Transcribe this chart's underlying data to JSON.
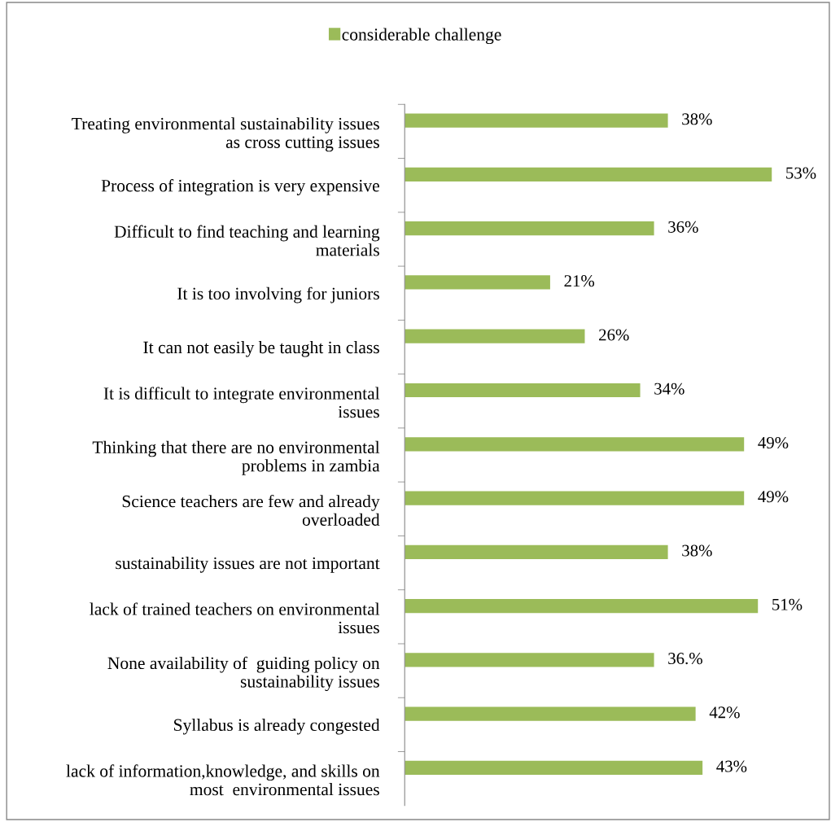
{
  "chart_data": {
    "type": "bar",
    "orientation": "horizontal",
    "categories": [
      "Treating environmental sustainability issues\nas cross cutting issues",
      "Process of integration is very expensive",
      "Difficult to find teaching and learning\nmaterials",
      "It is too involving for juniors",
      "It can not easily be taught in class",
      "It is difficult to integrate environmental\nissues",
      "Thinking that there are no environmental\nproblems in zambia",
      "Science teachers are few and already\noverloaded",
      "sustainability issues are not important",
      "lack of trained teachers on environmental\nissues",
      "None availability of  guiding policy on\nsustainability issues",
      "Syllabus is already congested",
      "lack of information,knowledge, and skills on\nmost  environmental issues"
    ],
    "series": [
      {
        "name": "considerable challenge",
        "color": "#9bbb59",
        "values": [
          38,
          53,
          36,
          21,
          26,
          34,
          49,
          49,
          38,
          51,
          36,
          42,
          43
        ],
        "value_labels": [
          "38%",
          "53%",
          "36%",
          "21%",
          "26%",
          "34%",
          "49%",
          "49%",
          "38%",
          "51%",
          "36.%",
          "42%",
          "43%"
        ]
      }
    ],
    "legend": "top",
    "grid": false
  }
}
